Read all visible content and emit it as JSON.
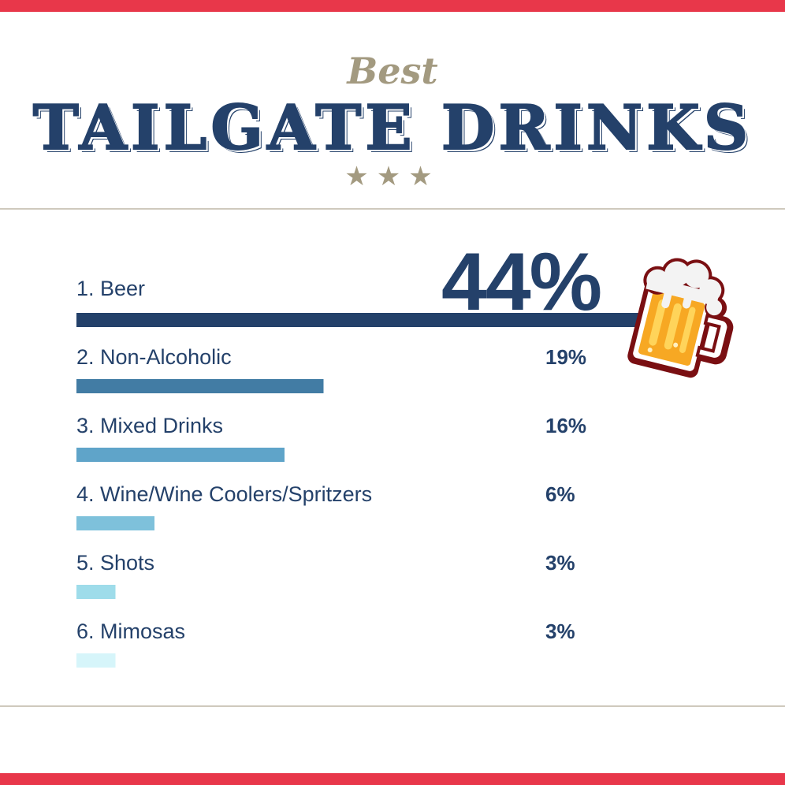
{
  "header": {
    "subtitle": "Best",
    "title": "TAILGATE DRINKS",
    "stars": "★★★"
  },
  "colors": {
    "accent_red": "#e8374a",
    "navy": "#24416a",
    "tan": "#a39a80",
    "rule": "#cfc9bd",
    "bar_colors": [
      "#24416a",
      "#427ca4",
      "#5fa4c9",
      "#7ec1db",
      "#9edcea",
      "#d6f5fa"
    ]
  },
  "chart_data": {
    "type": "bar",
    "orientation": "horizontal",
    "categories": [
      "1. Beer",
      "2. Non-Alcoholic",
      "3. Mixed Drinks",
      "4. Wine/Wine Coolers/Spritzers",
      "5. Shots",
      "6. Mimosas"
    ],
    "values": [
      44,
      19,
      16,
      6,
      3,
      3
    ],
    "value_labels": [
      "44%",
      "19%",
      "16%",
      "6%",
      "3%",
      "3%"
    ],
    "title": "TAILGATE DRINKS",
    "subtitle": "Best",
    "grid": false,
    "legend": "none"
  },
  "icons": {
    "beer_mug": "beer-mug-icon"
  }
}
